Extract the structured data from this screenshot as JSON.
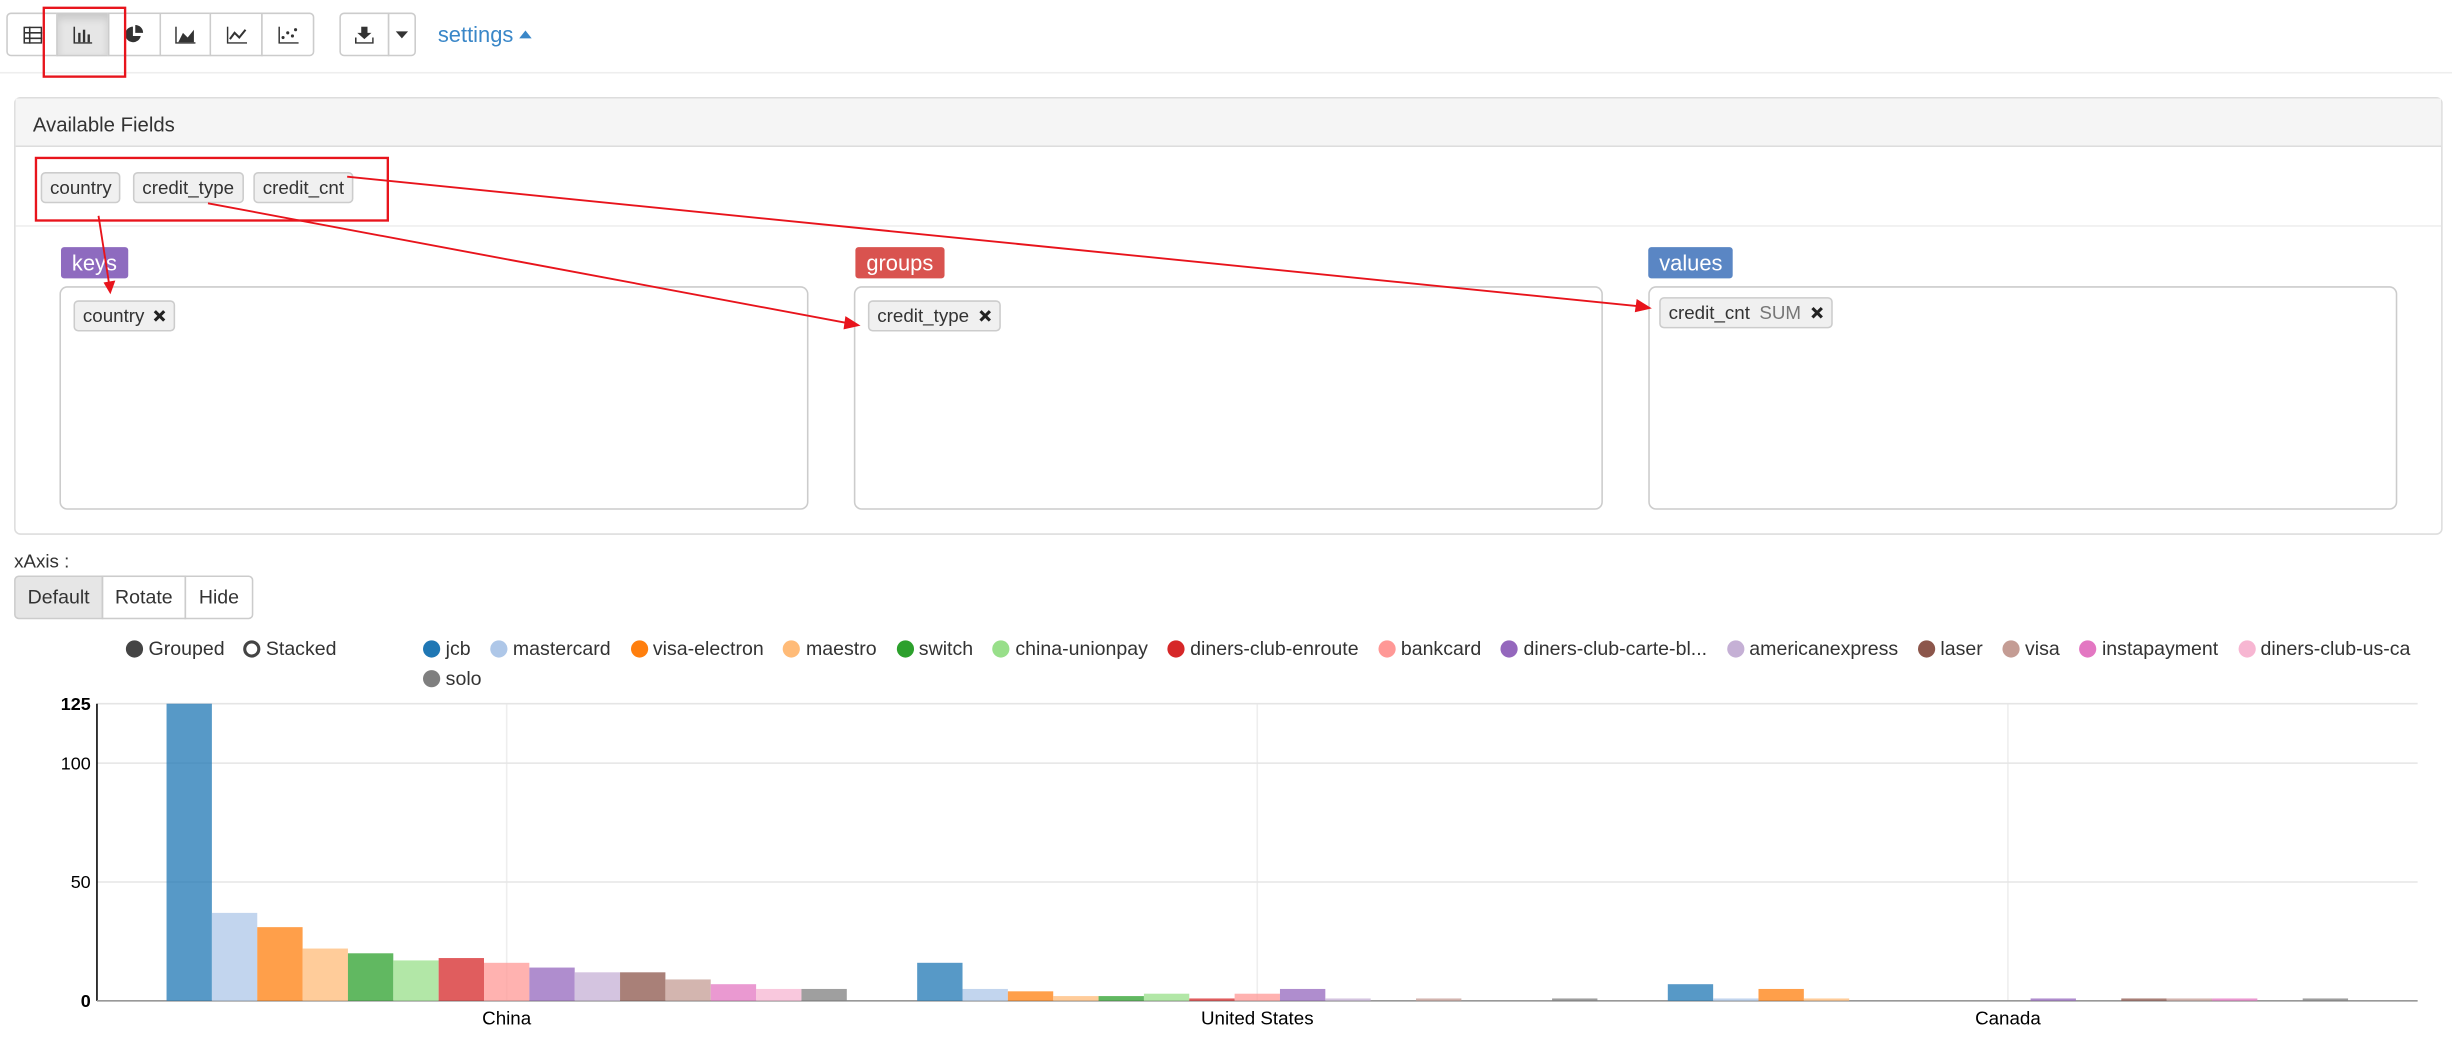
{
  "toolbar": {
    "settings": "settings"
  },
  "panel": {
    "title": "Available Fields",
    "fields": [
      "country",
      "credit_type",
      "credit_cnt"
    ],
    "keys": {
      "label": "keys",
      "items": [
        "country"
      ]
    },
    "groups": {
      "label": "groups",
      "items": [
        "credit_type"
      ]
    },
    "values": {
      "label": "values",
      "items": [
        {
          "name": "credit_cnt",
          "agg": "SUM"
        }
      ]
    }
  },
  "xaxis": {
    "label": "xAxis :",
    "options": [
      "Default",
      "Rotate",
      "Hide"
    ]
  },
  "modes": [
    "Grouped",
    "Stacked"
  ],
  "chart_data": {
    "type": "bar",
    "categories": [
      "China",
      "United States",
      "Canada"
    ],
    "ylim": [
      0,
      125
    ],
    "yticks": [
      0,
      50,
      100,
      125
    ],
    "grid": true,
    "series": [
      {
        "name": "jcb",
        "color": "#1f77b4",
        "values": [
          125,
          16,
          7
        ]
      },
      {
        "name": "mastercard",
        "color": "#aec7e8",
        "values": [
          37,
          5,
          1
        ]
      },
      {
        "name": "visa-electron",
        "color": "#ff7f0e",
        "values": [
          31,
          4,
          5
        ]
      },
      {
        "name": "maestro",
        "color": "#ffbb78",
        "values": [
          22,
          2,
          1
        ]
      },
      {
        "name": "switch",
        "color": "#2ca02c",
        "values": [
          20,
          2,
          0
        ]
      },
      {
        "name": "china-unionpay",
        "color": "#98df8a",
        "values": [
          17,
          3,
          0
        ]
      },
      {
        "name": "diners-club-enroute",
        "color": "#d62728",
        "values": [
          18,
          1,
          0
        ]
      },
      {
        "name": "bankcard",
        "color": "#ff9896",
        "values": [
          16,
          3,
          0
        ]
      },
      {
        "name": "diners-club-carte-bl...",
        "color": "#9467bd",
        "values": [
          14,
          5,
          1
        ]
      },
      {
        "name": "americanexpress",
        "color": "#c5b0d5",
        "values": [
          12,
          1,
          0
        ]
      },
      {
        "name": "laser",
        "color": "#8c564b",
        "values": [
          12,
          0,
          1
        ]
      },
      {
        "name": "visa",
        "color": "#c49c94",
        "values": [
          9,
          1,
          1
        ]
      },
      {
        "name": "instapayment",
        "color": "#e377c2",
        "values": [
          7,
          0,
          1
        ]
      },
      {
        "name": "diners-club-us-ca",
        "color": "#f7b6d2",
        "values": [
          5,
          0,
          0
        ]
      },
      {
        "name": "solo",
        "color": "#7f7f7f",
        "values": [
          5,
          1,
          1
        ]
      }
    ]
  }
}
